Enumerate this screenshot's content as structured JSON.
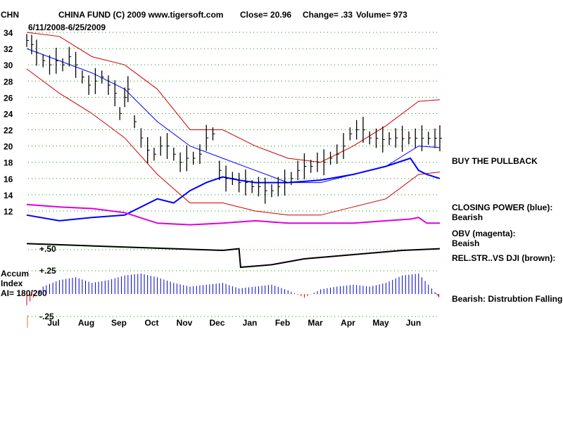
{
  "header": {
    "symbol": "CHN",
    "title": "CHINA FUND  (C) 2009 www.tigersoft.com",
    "close": "Close=  20.96",
    "change": "Change= .33",
    "volume": "Volume= 973",
    "date_range": "6/11/2008-6/25/2009"
  },
  "panels": {
    "buy_signal": "BUY THE PULLBACK",
    "closing_power_label": "CLOSING POWER (blue):",
    "closing_power_status": "Bearish",
    "obv_label": "OBV (magenta):",
    "obv_status": "Beaish",
    "relstr_label": "REL.STR..VS DJI (brown):",
    "accum_title_1": "Accum",
    "accum_title_2": "Index",
    "accum_ai": "AI= 180/200",
    "accum_comment": "Bearish: Distrubtion Falling.",
    "relstr_tick": "+.50",
    "accum_tick_high": "+.25",
    "accum_tick_low": "-.25"
  },
  "colors": {
    "price_bar": "#000000",
    "bollinger": "#cc0000",
    "ma_blue": "#0000ff",
    "closing_power": "#0000ff",
    "obv": "#dd00dd",
    "relstr": "#000000",
    "accum_bar": "#0000cc",
    "accum_neg": "#cc0000",
    "grid": "#009900"
  },
  "chart_data": {
    "type": "line",
    "title": "CHINA FUND (C) 2009 www.tigersoft.com",
    "ylim": [
      10,
      35
    ],
    "yticks": [
      12,
      14,
      16,
      18,
      20,
      22,
      24,
      26,
      28,
      30,
      32,
      34
    ],
    "months": [
      "Jul",
      "Aug",
      "Sep",
      "Oct",
      "Nov",
      "Dec",
      "Jan",
      "Feb",
      "Mar",
      "Apr",
      "May",
      "Jun"
    ],
    "price_close": {
      "x": [
        0,
        3,
        6,
        10,
        14,
        18,
        22,
        26,
        30,
        34,
        38,
        42,
        46,
        50,
        54,
        57,
        60,
        62,
        66,
        70,
        74,
        78,
        82,
        86,
        90,
        94,
        98,
        102,
        106,
        110,
        114,
        118,
        122,
        126,
        130,
        134,
        138,
        142,
        146,
        150,
        154,
        158,
        162,
        166,
        170,
        174,
        178,
        182,
        186,
        190,
        194,
        198,
        202,
        206,
        210,
        214,
        218,
        222,
        226,
        230,
        234,
        238,
        242,
        246,
        250,
        253
      ],
      "values": [
        33,
        32.5,
        31.5,
        30.5,
        30,
        30.5,
        30,
        31,
        30,
        28.5,
        27.5,
        28,
        28.5,
        27.5,
        26.5,
        24,
        26,
        27,
        23,
        21,
        19.5,
        19,
        20,
        20,
        19,
        18,
        18.5,
        18.5,
        19,
        21,
        21.5,
        17,
        16,
        16,
        15.5,
        15.5,
        15,
        15,
        14.5,
        14.5,
        15,
        15.5,
        16,
        17,
        17.5,
        17.5,
        18,
        18,
        18.5,
        19,
        20,
        21.5,
        22,
        22,
        21,
        20.96,
        20.8,
        20.9,
        21,
        20.9,
        21,
        20.96,
        20.96,
        20.96,
        20.96,
        20.96
      ]
    },
    "moving_average": {
      "x": [
        0,
        20,
        40,
        60,
        80,
        100,
        120,
        140,
        160,
        180,
        200,
        220,
        240,
        253
      ],
      "values": [
        32,
        30.5,
        29,
        27,
        23,
        20,
        18.5,
        17,
        15.5,
        15.5,
        16.5,
        17.5,
        20,
        19.8
      ]
    },
    "bollinger_upper": {
      "x": [
        0,
        20,
        40,
        60,
        80,
        100,
        120,
        140,
        160,
        180,
        200,
        220,
        240,
        253
      ],
      "values": [
        34,
        33.5,
        31,
        30,
        27,
        22,
        22,
        20,
        18.5,
        18,
        20,
        22.5,
        25.5,
        25.7
      ]
    },
    "bollinger_lower": {
      "x": [
        0,
        20,
        40,
        60,
        80,
        100,
        120,
        140,
        160,
        180,
        200,
        220,
        240,
        253
      ],
      "values": [
        29.5,
        26.5,
        24,
        21,
        16.5,
        13,
        13,
        12,
        11.5,
        11.5,
        12.5,
        13.5,
        16.5,
        16.8
      ]
    },
    "closing_power": {
      "x": [
        0,
        20,
        40,
        60,
        80,
        90,
        100,
        110,
        120,
        130,
        140,
        160,
        180,
        200,
        220,
        235,
        240,
        245,
        253
      ],
      "values": [
        11.5,
        10.8,
        11.2,
        11.5,
        13.5,
        13,
        14.5,
        15.5,
        16.2,
        15.8,
        15.5,
        15.5,
        15.8,
        16.5,
        17.5,
        18.5,
        17,
        16.5,
        16
      ]
    },
    "obv": {
      "x": [
        0,
        20,
        40,
        60,
        80,
        100,
        120,
        140,
        160,
        180,
        200,
        220,
        235,
        240,
        245,
        253
      ],
      "values": [
        12.8,
        12.5,
        12.3,
        11.8,
        10.5,
        10.3,
        10.5,
        10.8,
        10.5,
        10.5,
        10.5,
        10.8,
        11,
        11.2,
        10.5,
        10.5
      ]
    },
    "relstr": {
      "x": [
        0,
        30,
        60,
        90,
        120,
        130,
        131,
        150,
        170,
        200,
        230,
        253
      ],
      "values": [
        0.58,
        0.56,
        0.54,
        0.52,
        0.5,
        0.52,
        0.3,
        0.33,
        0.4,
        0.45,
        0.5,
        0.52
      ],
      "ylim": [
        0.2,
        0.7
      ]
    },
    "accum_index": {
      "x": [
        0,
        10,
        20,
        30,
        40,
        50,
        60,
        70,
        80,
        90,
        100,
        110,
        120,
        130,
        140,
        150,
        160,
        170,
        180,
        190,
        200,
        210,
        220,
        230,
        240,
        250,
        253
      ],
      "values": [
        -0.12,
        0.08,
        0.15,
        0.18,
        0.12,
        0.15,
        0.2,
        0.22,
        0.18,
        0.12,
        0.08,
        0.1,
        0.12,
        0.06,
        0.08,
        0.1,
        0.04,
        -0.04,
        0.05,
        0.08,
        0.1,
        0.08,
        0.12,
        0.2,
        0.22,
        0.02,
        -0.05
      ],
      "ylim": [
        -0.25,
        0.25
      ]
    }
  }
}
